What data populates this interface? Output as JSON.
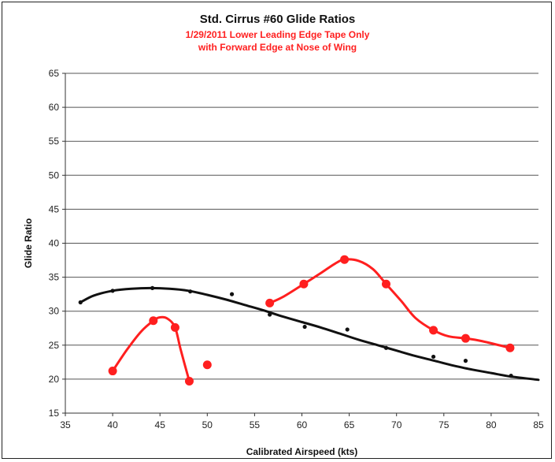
{
  "chart_data": {
    "type": "scatter",
    "title": "Std. Cirrus #60 Glide Ratios",
    "subtitle": [
      "1/29/2011 Lower Leading Edge Tape Only",
      "with Forward Edge at Nose of Wing"
    ],
    "xlabel": "Calibrated Airspeed (kts)",
    "ylabel": "Glide Ratio",
    "xlim": [
      35,
      85
    ],
    "ylim": [
      15,
      65
    ],
    "xticks": [
      35,
      40,
      45,
      50,
      55,
      60,
      65,
      70,
      75,
      80,
      85
    ],
    "yticks": [
      15,
      20,
      25,
      30,
      35,
      40,
      45,
      50,
      55,
      60,
      65
    ],
    "grid": "horizontal",
    "colors": {
      "black": "#111111",
      "red": "#ff1f1f",
      "grid": "#555555"
    },
    "series": [
      {
        "color": "#111111",
        "marker": "small",
        "points": [
          [
            36.6,
            31.3
          ],
          [
            40.0,
            33.0
          ],
          [
            44.2,
            33.4
          ],
          [
            48.2,
            32.9
          ],
          [
            52.6,
            32.5
          ],
          [
            56.6,
            29.5
          ],
          [
            60.3,
            27.7
          ],
          [
            64.8,
            27.3
          ],
          [
            68.9,
            24.6
          ],
          [
            73.9,
            23.3
          ],
          [
            77.3,
            22.7
          ],
          [
            82.1,
            20.5
          ]
        ]
      },
      {
        "color": "#111111",
        "type": "curve",
        "points": [
          [
            36.6,
            31.3
          ],
          [
            38,
            32.3
          ],
          [
            40,
            33.0
          ],
          [
            42,
            33.3
          ],
          [
            44,
            33.4
          ],
          [
            46,
            33.3
          ],
          [
            48,
            33.0
          ],
          [
            50,
            32.4
          ],
          [
            52,
            31.7
          ],
          [
            54,
            30.9
          ],
          [
            56,
            30.1
          ],
          [
            58,
            29.2
          ],
          [
            60,
            28.4
          ],
          [
            62,
            27.6
          ],
          [
            64,
            26.7
          ],
          [
            66,
            25.8
          ],
          [
            68,
            25.0
          ],
          [
            70,
            24.2
          ],
          [
            72,
            23.4
          ],
          [
            74,
            22.7
          ],
          [
            76,
            22.0
          ],
          [
            78,
            21.4
          ],
          [
            80,
            20.9
          ],
          [
            82,
            20.4
          ],
          [
            85,
            19.9
          ]
        ]
      },
      {
        "color": "#ff1f1f",
        "marker": "large",
        "points": [
          [
            40.0,
            21.2
          ],
          [
            44.3,
            28.6
          ],
          [
            46.6,
            27.6
          ],
          [
            48.1,
            19.7
          ],
          [
            50.0,
            22.1
          ]
        ]
      },
      {
        "color": "#ff1f1f",
        "type": "curve",
        "points": [
          [
            40.0,
            21.2
          ],
          [
            41.5,
            24.3
          ],
          [
            43.0,
            27.0
          ],
          [
            44.3,
            28.6
          ],
          [
            45.0,
            29.1
          ],
          [
            45.8,
            28.9
          ],
          [
            46.6,
            27.6
          ],
          [
            47.2,
            24.3
          ],
          [
            48.1,
            19.7
          ]
        ]
      },
      {
        "color": "#ff1f1f",
        "marker": "large",
        "points": [
          [
            56.6,
            31.2
          ],
          [
            60.2,
            34.0
          ],
          [
            64.5,
            37.6
          ],
          [
            68.9,
            34.0
          ],
          [
            73.9,
            27.2
          ],
          [
            77.3,
            26.0
          ],
          [
            82.0,
            24.6
          ]
        ]
      },
      {
        "color": "#ff1f1f",
        "type": "curve",
        "points": [
          [
            56.6,
            31.2
          ],
          [
            58,
            32.1
          ],
          [
            60.2,
            34.0
          ],
          [
            62,
            35.6
          ],
          [
            63.5,
            37.0
          ],
          [
            64.5,
            37.6
          ],
          [
            66,
            37.4
          ],
          [
            67.5,
            36.2
          ],
          [
            68.9,
            34.0
          ],
          [
            70.5,
            31.5
          ],
          [
            72,
            29.0
          ],
          [
            73.9,
            27.2
          ],
          [
            75.5,
            26.3
          ],
          [
            77.3,
            26.0
          ],
          [
            79,
            25.6
          ],
          [
            82.0,
            24.6
          ]
        ]
      }
    ]
  }
}
